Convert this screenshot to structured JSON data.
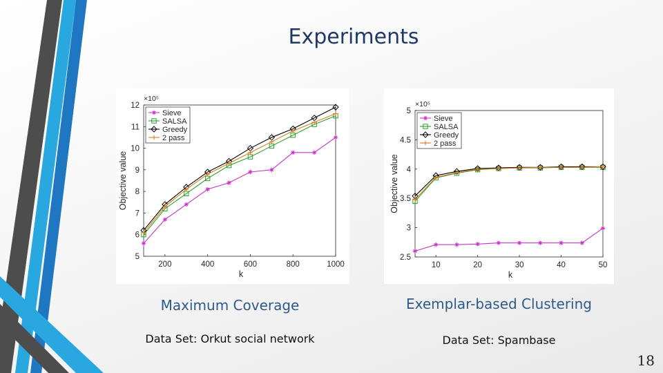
{
  "slide": {
    "title": "Experiments",
    "number": "18",
    "accent_colors": [
      "#1f77c2",
      "#4d4d4d",
      "#29a8e0"
    ]
  },
  "captions": {
    "left_title": "Maximum Coverage",
    "left_dataset": "Data Set: Orkut social network",
    "right_title": "Exemplar-based Clustering",
    "right_dataset": "Data Set: Spambase"
  },
  "chart_data": [
    {
      "type": "line",
      "xlabel": "k",
      "ylabel": "Objective value",
      "y_multiplier": "×10⁵",
      "xlim": [
        100,
        1000
      ],
      "ylim": [
        5,
        12
      ],
      "xticks": [
        200,
        400,
        600,
        800,
        1000
      ],
      "yticks": [
        5,
        6,
        7,
        8,
        9,
        10,
        11,
        12
      ],
      "legend_position": "top-left",
      "grid": false,
      "x": [
        100,
        200,
        300,
        400,
        500,
        600,
        700,
        800,
        900,
        1000
      ],
      "series": [
        {
          "name": "Sieve",
          "color": "#c832c8",
          "marker": "star",
          "values": [
            5.6,
            6.7,
            7.4,
            8.1,
            8.4,
            8.9,
            9.0,
            9.8,
            9.8,
            10.5
          ]
        },
        {
          "name": "SALSA",
          "color": "#2ca02c",
          "marker": "square",
          "values": [
            6.0,
            7.2,
            7.9,
            8.6,
            9.2,
            9.6,
            10.1,
            10.6,
            11.1,
            11.5
          ]
        },
        {
          "name": "Greedy",
          "color": "#000000",
          "marker": "diamond",
          "values": [
            6.2,
            7.4,
            8.2,
            8.9,
            9.4,
            10.0,
            10.5,
            10.9,
            11.4,
            11.9
          ]
        },
        {
          "name": "2 pass",
          "color": "#e07b20",
          "marker": "plus",
          "values": [
            6.1,
            7.3,
            8.1,
            8.8,
            9.3,
            9.8,
            10.3,
            10.8,
            11.2,
            11.6
          ]
        }
      ]
    },
    {
      "type": "line",
      "xlabel": "k",
      "ylabel": "Objective value",
      "y_multiplier": "×10⁵",
      "xlim": [
        5,
        50
      ],
      "ylim": [
        2.5,
        5
      ],
      "xticks": [
        10,
        20,
        30,
        40,
        50
      ],
      "yticks": [
        2.5,
        3,
        3.5,
        4,
        4.5,
        5
      ],
      "legend_position": "top-left",
      "grid": false,
      "x": [
        5,
        10,
        15,
        20,
        25,
        30,
        35,
        40,
        45,
        50
      ],
      "series": [
        {
          "name": "Sieve",
          "color": "#c832c8",
          "marker": "star",
          "values": [
            2.6,
            2.71,
            2.71,
            2.72,
            2.74,
            2.74,
            2.74,
            2.74,
            2.74,
            2.99
          ]
        },
        {
          "name": "SALSA",
          "color": "#2ca02c",
          "marker": "square",
          "values": [
            3.45,
            3.85,
            3.93,
            3.99,
            4.01,
            4.02,
            4.02,
            4.03,
            4.03,
            4.03
          ]
        },
        {
          "name": "Greedy",
          "color": "#000000",
          "marker": "diamond",
          "values": [
            3.54,
            3.89,
            3.96,
            4.01,
            4.02,
            4.03,
            4.03,
            4.04,
            4.04,
            4.04
          ]
        },
        {
          "name": "2 pass",
          "color": "#e07b20",
          "marker": "plus",
          "values": [
            3.48,
            3.86,
            3.94,
            4.0,
            4.01,
            4.02,
            4.03,
            4.03,
            4.03,
            4.04
          ]
        }
      ]
    }
  ]
}
